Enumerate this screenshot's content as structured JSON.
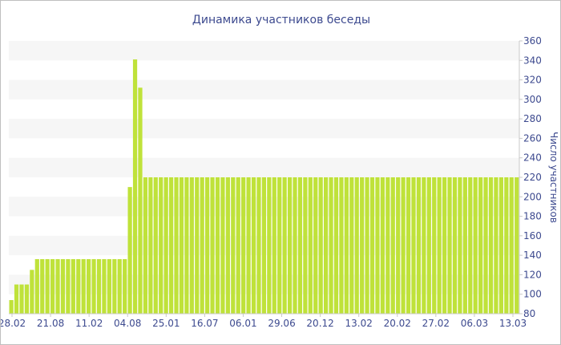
{
  "chart_data": {
    "type": "bar",
    "title": "Динамика участников беседы",
    "ylabel": "Число участников",
    "ylabel_position": "right",
    "ylim": [
      80,
      360
    ],
    "y_ticks": [
      80,
      100,
      120,
      140,
      160,
      180,
      200,
      220,
      240,
      260,
      280,
      300,
      320,
      340,
      360
    ],
    "x_tick_labels": [
      "28.02",
      "21.08",
      "11.02",
      "04.08",
      "25.01",
      "16.07",
      "06.01",
      "29.06",
      "20.12",
      "13.02",
      "20.02",
      "27.02",
      "06.03",
      "13.03"
    ],
    "grid": "horizontal-bands",
    "series": [
      {
        "color": "#bfe23a",
        "values": [
          94,
          110,
          110,
          110,
          125,
          136,
          136,
          136,
          136,
          136,
          136,
          136,
          136,
          136,
          136,
          136,
          136,
          136,
          136,
          136,
          136,
          136,
          136,
          210,
          341,
          312,
          220,
          220,
          220,
          220,
          220,
          220,
          220,
          220,
          220,
          220,
          220,
          220,
          220,
          220,
          220,
          220,
          220,
          220,
          220,
          220,
          220,
          220,
          220,
          220,
          220,
          220,
          220,
          220,
          220,
          220,
          220,
          220,
          220,
          220,
          220,
          220,
          220,
          220,
          220,
          220,
          220,
          220,
          220,
          220,
          220,
          220,
          220,
          220,
          220,
          220,
          220,
          220,
          220,
          220,
          220,
          220,
          220,
          220,
          220,
          220,
          220,
          220,
          220,
          220,
          220,
          220,
          220,
          220,
          220,
          220,
          220,
          220,
          220
        ]
      }
    ],
    "colors": {
      "bar": "#bfe23a",
      "text": "#3d4a8f",
      "band": "#f6f6f6",
      "axis": "#c8c8c8"
    }
  }
}
